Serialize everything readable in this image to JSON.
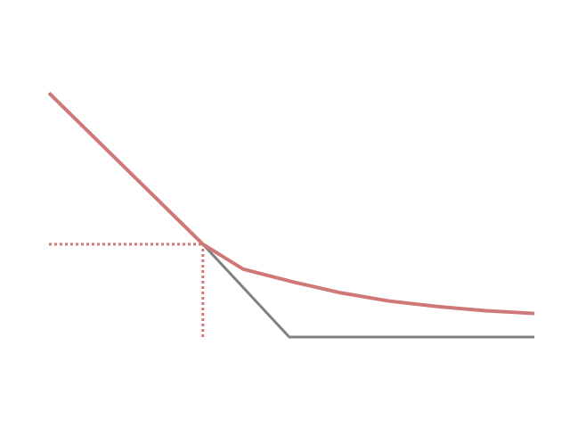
{
  "chart_data": {
    "type": "line",
    "title": "",
    "xlabel": "",
    "ylabel": "",
    "xlim": [
      0,
      10
    ],
    "ylim": [
      0,
      10
    ],
    "grid": false,
    "legend": "none",
    "series": [
      {
        "color": "#808080",
        "points": [
          {
            "x": 0.0,
            "y": 8.8
          },
          {
            "x": 3.17,
            "y": 3.35
          },
          {
            "x": 4.95,
            "y": 0.0
          },
          {
            "x": 10.0,
            "y": 0.0
          }
        ]
      },
      {
        "color": "#d07878",
        "points": [
          {
            "x": 0.0,
            "y": 8.8
          },
          {
            "x": 3.17,
            "y": 3.35
          },
          {
            "x": 4.0,
            "y": 2.45
          },
          {
            "x": 5.0,
            "y": 2.0
          },
          {
            "x": 6.0,
            "y": 1.6
          },
          {
            "x": 7.0,
            "y": 1.3
          },
          {
            "x": 8.0,
            "y": 1.1
          },
          {
            "x": 9.0,
            "y": 0.95
          },
          {
            "x": 10.0,
            "y": 0.85
          }
        ]
      }
    ],
    "reference_lines": [
      {
        "type": "horizontal",
        "color": "#d07878",
        "y": 3.35,
        "x_from": 0.0,
        "x_to": 3.17
      },
      {
        "type": "vertical",
        "color": "#d07878",
        "x": 3.17,
        "y_from": 0.0,
        "y_to": 3.35
      }
    ]
  }
}
